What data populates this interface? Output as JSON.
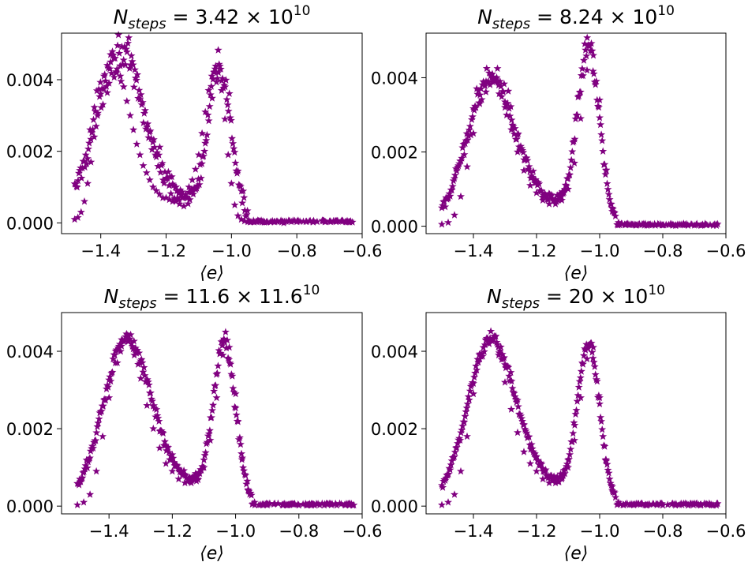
{
  "chart_data": [
    {
      "type": "scatter",
      "title": {
        "pre": "N",
        "sub": "steps",
        "mid": " = 3.42 × 10",
        "sup": "10"
      },
      "xlabel": "⟨e⟩",
      "xlim": [
        -1.52,
        -0.6
      ],
      "ylim": [
        -0.0003,
        0.0053
      ],
      "xticks": [
        "−1.4",
        "−1.2",
        "−1.0",
        "−0.8",
        "−0.6"
      ],
      "yticks": [
        "0.000",
        "0.002",
        "0.004"
      ],
      "xmin": -1.48,
      "peak_left": 0.0048,
      "peak_right": 0.0043,
      "valley": 0.0006,
      "noise": 0.00042,
      "grid": false,
      "series": [
        {
          "marker": "star",
          "color": "#800080",
          "x": [
            -1.48,
            -1.47,
            -1.46,
            -1.45,
            -1.44,
            -1.43,
            -1.42,
            -1.41,
            -1.4,
            -1.39,
            -1.38,
            -1.37,
            -1.36,
            -1.35,
            -1.34,
            -1.33,
            -1.32,
            -1.31,
            -1.3,
            -1.29,
            -1.28,
            -1.27,
            -1.26,
            -1.25,
            -1.24,
            -1.23,
            -1.22,
            -1.21,
            -1.2,
            -1.19,
            -1.18,
            -1.17,
            -1.16,
            -1.15,
            -1.14,
            -1.13,
            -1.12,
            -1.11,
            -1.1,
            -1.09,
            -1.08,
            -1.07,
            -1.06,
            -1.05,
            -1.04,
            -1.03,
            -1.02,
            -1.01,
            -1.0,
            -0.99,
            -0.98,
            -0.97,
            -0.96,
            -0.95,
            -0.93,
            -0.9,
            -0.88,
            -0.84,
            -0.8,
            -0.77,
            -0.75,
            -0.72,
            -0.7,
            -0.68,
            -0.66,
            -0.64,
            -0.63
          ],
          "y": [
            0.0001,
            0.00015,
            0.0003,
            0.0006,
            0.0011,
            0.0017,
            0.0024,
            0.003,
            0.0036,
            0.0041,
            0.0044,
            0.0047,
            0.0046,
            0.0043,
            0.0041,
            0.0038,
            0.0034,
            0.003,
            0.0026,
            0.0022,
            0.0019,
            0.0016,
            0.0014,
            0.0012,
            0.001,
            0.0009,
            0.0008,
            0.0007,
            0.0007,
            0.00065,
            0.0006,
            0.0006,
            0.00065,
            0.0007,
            0.0008,
            0.001,
            0.0012,
            0.0015,
            0.0019,
            0.0025,
            0.0031,
            0.0037,
            0.0041,
            0.0043,
            0.0042,
            0.0037,
            0.0029,
            0.0019,
            0.0011,
            0.0005,
            0.0002,
            0.0001,
            5e-05,
            3e-05,
            2e-05,
            2e-05,
            2e-05,
            0.0,
            3e-05,
            4e-05,
            2e-05,
            5e-05,
            4e-05,
            3e-05,
            4e-05,
            3e-05,
            2e-05
          ]
        }
      ]
    },
    {
      "type": "scatter",
      "title": {
        "pre": "N",
        "sub": "steps",
        "mid": " = 8.24 × 10",
        "sup": "10"
      },
      "xlabel": "⟨e⟩",
      "xlim": [
        -1.55,
        -0.6
      ],
      "ylim": [
        -0.0002,
        0.0052
      ],
      "xticks": [
        "−1.4",
        "−1.2",
        "−1.0",
        "−0.8",
        "−0.6"
      ],
      "yticks": [
        "0.000",
        "0.002",
        "0.004"
      ],
      "xmin": -1.5,
      "peak_left": 0.0041,
      "peak_right": 0.0047,
      "valley": 0.0006,
      "noise": 0.00026,
      "grid": false,
      "series": [
        {
          "marker": "star",
          "color": "#800080",
          "x": [
            -1.5,
            -1.48,
            -1.46,
            -1.44,
            -1.42,
            -1.4,
            -1.38,
            -1.36,
            -1.34,
            -1.32,
            -1.3,
            -1.28,
            -1.26,
            -1.24,
            -1.22,
            -1.2,
            -1.18,
            -1.16,
            -1.14,
            -1.12,
            -1.1,
            -1.08,
            -1.06,
            -1.04,
            -1.02,
            -1.0,
            -0.98,
            -0.96,
            -0.94,
            -0.9,
            -0.85,
            -0.8,
            -0.76,
            -0.72,
            -0.68,
            -0.64,
            -0.63
          ],
          "y": [
            5e-05,
            0.0001,
            0.0003,
            0.0008,
            0.0016,
            0.0025,
            0.0033,
            0.0039,
            0.0041,
            0.0038,
            0.0032,
            0.0026,
            0.002,
            0.0015,
            0.0011,
            0.0009,
            0.0007,
            0.0006,
            0.0006,
            0.0007,
            0.001,
            0.0017,
            0.0029,
            0.0042,
            0.0046,
            0.0034,
            0.0015,
            0.0004,
            0.0001,
            5e-05,
            2e-05,
            3e-05,
            2e-05,
            2e-05,
            2e-05,
            2e-05,
            2e-05
          ]
        }
      ]
    },
    {
      "type": "scatter",
      "title": {
        "pre": "N",
        "sub": "steps",
        "mid": " = 11.6 × 11.6",
        "sup": "10"
      },
      "xlabel": "⟨e⟩",
      "xlim": [
        -1.55,
        -0.6
      ],
      "ylim": [
        -0.0002,
        0.005
      ],
      "xticks": [
        "−1.4",
        "−1.2",
        "−1.0",
        "−0.8",
        "−0.6"
      ],
      "yticks": [
        "0.000",
        "0.002",
        "0.004"
      ],
      "xmin": -1.5,
      "peak_left": 0.0044,
      "peak_right": 0.0042,
      "valley": 0.0006,
      "noise": 0.0002,
      "grid": false,
      "series": [
        {
          "marker": "star",
          "color": "#800080",
          "x": [
            -1.5,
            -1.48,
            -1.46,
            -1.44,
            -1.42,
            -1.4,
            -1.38,
            -1.36,
            -1.34,
            -1.32,
            -1.3,
            -1.28,
            -1.26,
            -1.24,
            -1.22,
            -1.2,
            -1.18,
            -1.16,
            -1.14,
            -1.12,
            -1.1,
            -1.08,
            -1.06,
            -1.04,
            -1.02,
            -1.0,
            -0.98,
            -0.96,
            -0.94,
            -0.9,
            -0.85,
            -0.8,
            -0.76,
            -0.72,
            -0.68,
            -0.64,
            -0.63
          ],
          "y": [
            3e-05,
            0.0001,
            0.0003,
            0.0009,
            0.0018,
            0.0028,
            0.0037,
            0.0043,
            0.0044,
            0.0039,
            0.0033,
            0.0026,
            0.002,
            0.0015,
            0.0011,
            0.0009,
            0.0007,
            0.0006,
            0.0006,
            0.0007,
            0.001,
            0.0017,
            0.0028,
            0.0039,
            0.0041,
            0.0029,
            0.0012,
            0.0004,
            0.0001,
            4e-05,
            2e-05,
            2e-05,
            2e-05,
            2e-05,
            2e-05,
            2e-05,
            2e-05
          ]
        }
      ]
    },
    {
      "type": "scatter",
      "title": {
        "pre": "N",
        "sub": "steps",
        "mid": " = 20 × 10",
        "sup": "10"
      },
      "xlabel": "⟨e⟩",
      "xlim": [
        -1.55,
        -0.6
      ],
      "ylim": [
        -0.0002,
        0.005
      ],
      "xticks": [
        "−1.4",
        "−1.2",
        "−1.0",
        "−0.8",
        "−0.6"
      ],
      "yticks": [
        "0.000",
        "0.002",
        "0.004"
      ],
      "xmin": -1.5,
      "peak_left": 0.0044,
      "peak_right": 0.0042,
      "valley": 0.0006,
      "noise": 0.00017,
      "grid": false,
      "series": [
        {
          "marker": "star",
          "color": "#800080",
          "x": [
            -1.5,
            -1.48,
            -1.46,
            -1.44,
            -1.42,
            -1.4,
            -1.38,
            -1.36,
            -1.34,
            -1.32,
            -1.3,
            -1.28,
            -1.26,
            -1.24,
            -1.22,
            -1.2,
            -1.18,
            -1.16,
            -1.14,
            -1.12,
            -1.1,
            -1.08,
            -1.06,
            -1.04,
            -1.02,
            -1.0,
            -0.98,
            -0.96,
            -0.94,
            -0.9,
            -0.85,
            -0.8,
            -0.76,
            -0.72,
            -0.68,
            -0.64,
            -0.63
          ],
          "y": [
            3e-05,
            0.0001,
            0.0003,
            0.0009,
            0.0018,
            0.0029,
            0.0038,
            0.0043,
            0.0043,
            0.0039,
            0.0032,
            0.0025,
            0.0019,
            0.0014,
            0.0011,
            0.0009,
            0.0007,
            0.0006,
            0.0006,
            0.0007,
            0.001,
            0.0017,
            0.0028,
            0.0038,
            0.0041,
            0.0028,
            0.0012,
            0.0004,
            0.0001,
            4e-05,
            2e-05,
            2e-05,
            2e-05,
            2e-05,
            2e-05,
            2e-05,
            2e-05
          ]
        }
      ]
    }
  ]
}
